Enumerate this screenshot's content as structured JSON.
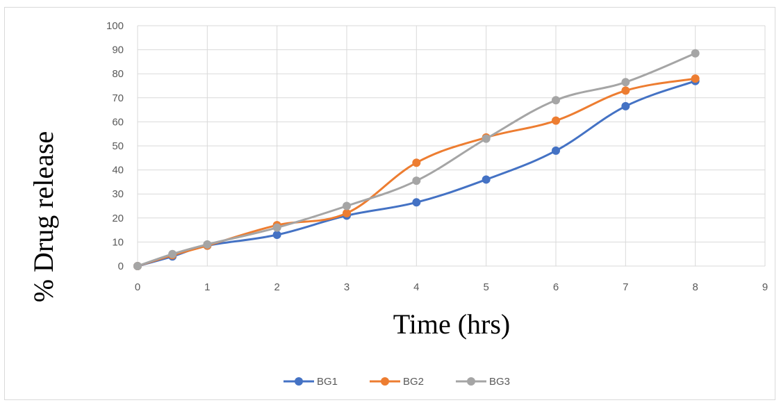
{
  "chart_data": {
    "type": "line",
    "title": "",
    "xlabel": "Time (hrs)",
    "ylabel": "% Drug release",
    "xlim": [
      0,
      9
    ],
    "ylim": [
      0,
      100
    ],
    "x_ticks": [
      "0",
      "1",
      "2",
      "3",
      "4",
      "5",
      "6",
      "7",
      "8",
      "9"
    ],
    "y_ticks": [
      "0",
      "10",
      "20",
      "30",
      "40",
      "50",
      "60",
      "70",
      "80",
      "90",
      "100"
    ],
    "grid": true,
    "legend_position": "bottom",
    "x": [
      0,
      0.5,
      1,
      2,
      3,
      4,
      5,
      6,
      7,
      8
    ],
    "series": [
      {
        "name": "BG1",
        "color": "#4472C4",
        "values": [
          0,
          4,
          8.5,
          13,
          21,
          26.5,
          36,
          48,
          66.5,
          77
        ]
      },
      {
        "name": "BG2",
        "color": "#ED7D31",
        "values": [
          0,
          4.5,
          8.5,
          17,
          22,
          43,
          53.5,
          60.5,
          73,
          78
        ]
      },
      {
        "name": "BG3",
        "color": "#A5A5A5",
        "values": [
          0,
          5,
          9,
          16,
          25,
          35.5,
          53,
          69,
          76.5,
          88.5
        ]
      }
    ]
  }
}
